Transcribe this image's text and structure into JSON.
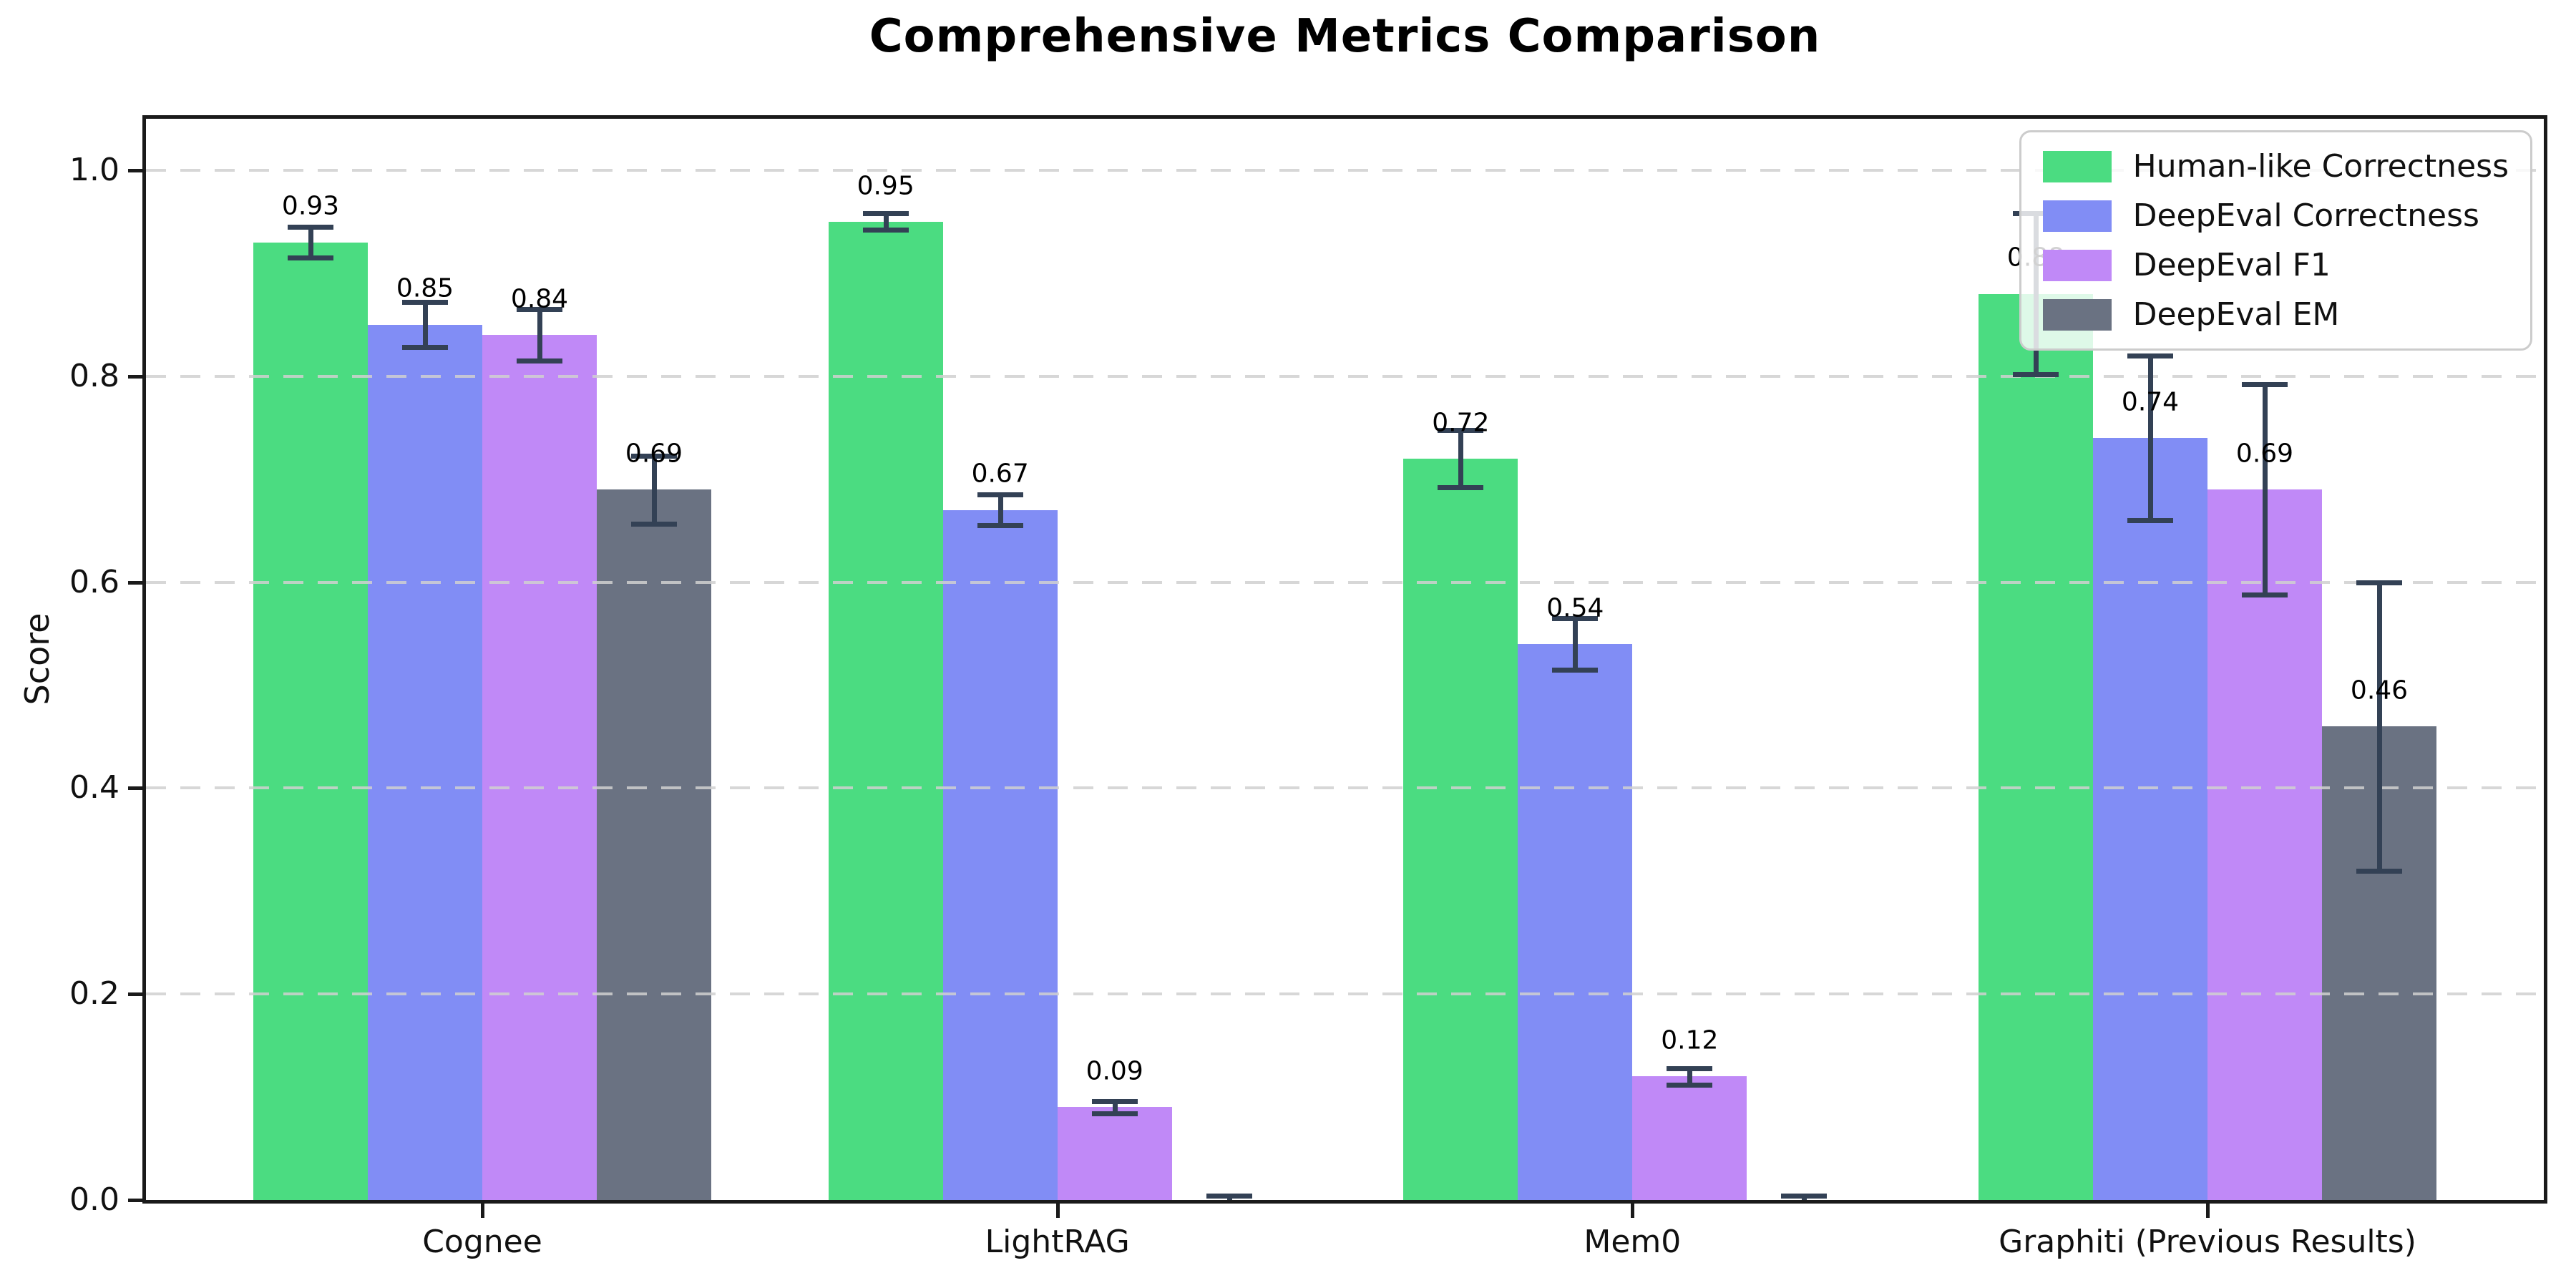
{
  "chart_data": {
    "type": "bar",
    "title": "Comprehensive Metrics Comparison",
    "ylabel": "Score",
    "xlabel": "",
    "categories": [
      "Cognee",
      "LightRAG",
      "Mem0",
      "Graphiti (Previous Results)"
    ],
    "series": [
      {
        "name": "Human-like Correctness",
        "color": "#4bdc81",
        "values": [
          0.93,
          0.95,
          0.72,
          0.88
        ],
        "errors": [
          0.015,
          0.008,
          0.028,
          0.078
        ],
        "labels": [
          "0.93",
          "0.95",
          "0.72",
          "0.88"
        ]
      },
      {
        "name": "DeepEval Correctness",
        "color": "#818df5",
        "values": [
          0.85,
          0.67,
          0.54,
          0.74
        ],
        "errors": [
          0.022,
          0.015,
          0.025,
          0.08
        ],
        "labels": [
          "0.85",
          "0.67",
          "0.54",
          "0.74"
        ]
      },
      {
        "name": "DeepEval F1",
        "color": "#c089f7",
        "values": [
          0.84,
          0.09,
          0.12,
          0.69
        ],
        "errors": [
          0.025,
          0.006,
          0.008,
          0.102
        ],
        "labels": [
          "0.84",
          "0.09",
          "0.12",
          "0.69"
        ]
      },
      {
        "name": "DeepEval EM",
        "color": "#6a7282",
        "values": [
          0.69,
          0.0,
          0.0,
          0.46
        ],
        "errors": [
          0.033,
          0.004,
          0.004,
          0.14
        ],
        "labels": [
          "0.69",
          "",
          "",
          "0.46"
        ]
      }
    ],
    "yticks": [
      "0.0",
      "0.2",
      "0.4",
      "0.6",
      "0.8",
      "1.0"
    ],
    "ylim": [
      0,
      1.05
    ],
    "grid": "horizontal-dashed-over-bars",
    "legend_position": "upper-right",
    "colors": {
      "errorbar": "#334155",
      "grid": "#d0d0d0",
      "axis": "#1a1a1a",
      "text": "#111111",
      "background": "#ffffff"
    }
  }
}
